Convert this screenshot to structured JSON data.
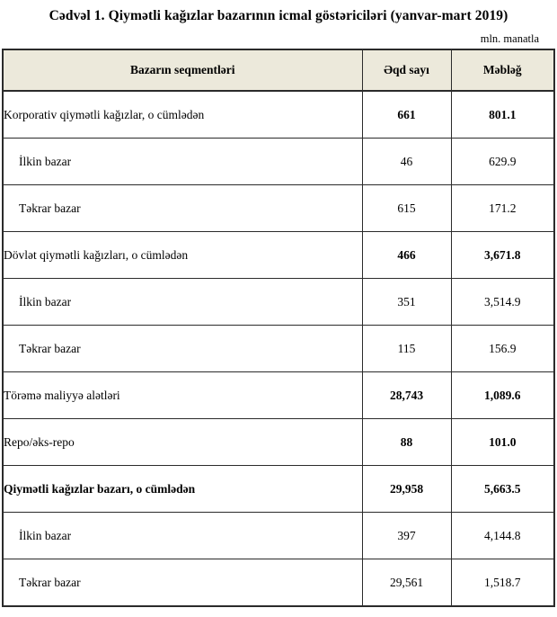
{
  "title": "Cədvəl 1. Qiymətli kağızlar bazarının icmal göstəriciləri (yanvar-mart 2019)",
  "unit_note": "mln. manatla",
  "table": {
    "columns": [
      "Bazarın seqmentləri",
      "Əqd sayı",
      "Məbləğ"
    ],
    "rows": [
      {
        "label": "Korporativ qiymətli kağızlar, o cümlədən",
        "deals": "661",
        "amount": "801.1",
        "emphasis": "section"
      },
      {
        "label": "İlkin bazar",
        "deals": "46",
        "amount": "629.9",
        "emphasis": "sub"
      },
      {
        "label": "Təkrar bazar",
        "deals": "615",
        "amount": "171.2",
        "emphasis": "sub"
      },
      {
        "label": "Dövlət qiymətli kağızları, o cümlədən",
        "deals": "466",
        "amount": "3,671.8",
        "emphasis": "section"
      },
      {
        "label": "İlkin bazar",
        "deals": "351",
        "amount": "3,514.9",
        "emphasis": "sub"
      },
      {
        "label": "Təkrar bazar",
        "deals": "115",
        "amount": "156.9",
        "emphasis": "sub"
      },
      {
        "label": "Törəmə maliyyə alətləri",
        "deals": "28,743",
        "amount": "1,089.6",
        "emphasis": "section"
      },
      {
        "label": "Repo/əks-repo",
        "deals": "88",
        "amount": "101.0",
        "emphasis": "section"
      },
      {
        "label": "Qiymətli kağızlar bazarı, o cümlədən",
        "deals": "29,958",
        "amount": "5,663.5",
        "emphasis": "total"
      },
      {
        "label": "İlkin bazar",
        "deals": "397",
        "amount": "4,144.8",
        "emphasis": "sub"
      },
      {
        "label": "Təkrar bazar",
        "deals": "29,561",
        "amount": "1,518.7",
        "emphasis": "sub"
      }
    ]
  },
  "colors": {
    "header_background": "#ece9db",
    "border": "#2b2b2b",
    "page_background": "#ffffff"
  }
}
